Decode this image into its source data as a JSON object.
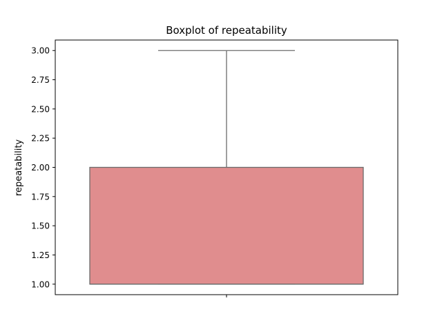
{
  "chart_data": {
    "type": "box",
    "title": "Boxplot of repeatability",
    "xlabel": "",
    "ylabel": "repeatability",
    "ylim": [
      0.91,
      3.09
    ],
    "y_ticks": [
      {
        "value": 1.0,
        "label": "1.00"
      },
      {
        "value": 1.25,
        "label": "1.25"
      },
      {
        "value": 1.5,
        "label": "1.50"
      },
      {
        "value": 1.75,
        "label": "1.75"
      },
      {
        "value": 2.0,
        "label": "2.00"
      },
      {
        "value": 2.25,
        "label": "2.25"
      },
      {
        "value": 2.5,
        "label": "2.50"
      },
      {
        "value": 2.75,
        "label": "2.75"
      },
      {
        "value": 3.0,
        "label": "3.00"
      }
    ],
    "box": {
      "whisker_low": 1.0,
      "q1": 1.0,
      "median": 1.0,
      "q3": 2.0,
      "whisker_high": 3.0
    },
    "grid": false,
    "colors": {
      "box_fill": "#e08d8e",
      "line": "#6b6b6b",
      "axes": "#000000"
    }
  }
}
